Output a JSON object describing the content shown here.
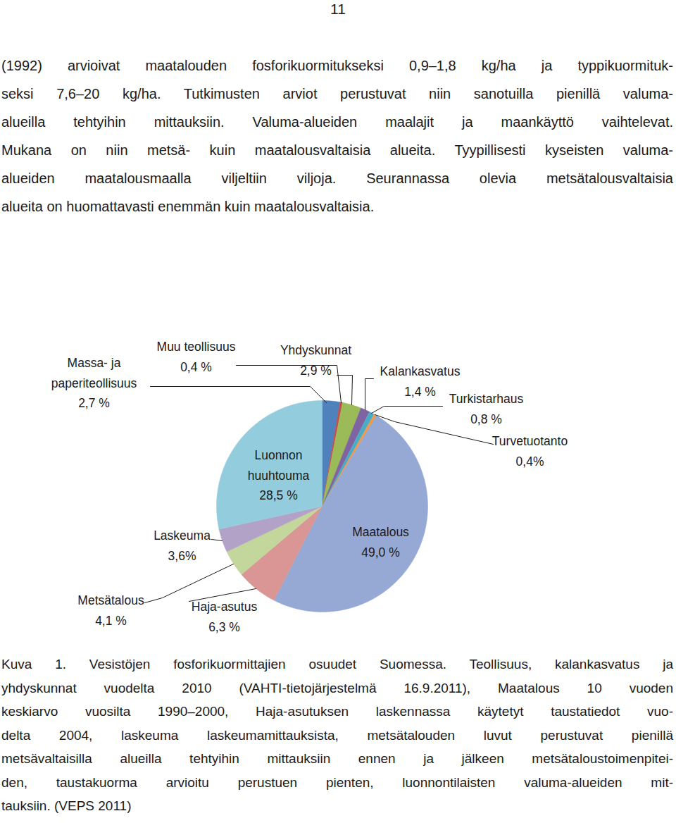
{
  "page_number": "11",
  "paragraph": [
    "(1992) arvioivat maatalouden fosforikuormitukseksi 0,9–1,8 kg/ha ja typpikuormituk-",
    "seksi 7,6–20 kg/ha. Tutkimusten arviot perustuvat niin sanotuilla pienillä valuma-",
    "alueilla tehtyihin mittauksiin. Valuma-alueiden maalajit ja maankäyttö vaihtelevat.",
    "Mukana on niin metsä- kuin maatalousvaltaisia alueita. Tyypillisesti kyseisten valuma-",
    "alueiden maatalousmaalla viljeltiin viljoja. Seurannassa olevia metsätalousvaltaisia",
    "alueita on huomattavasti enemmän kuin maatalousvaltaisia."
  ],
  "chart_data": {
    "type": "pie",
    "categories": [
      "Massa- ja paperiteollisuus",
      "Muu teollisuus",
      "Yhdyskunnat",
      "Kalankasvatus",
      "Turkistarhaus",
      "Turvetuotanto",
      "Maatalous",
      "Haja-asutus",
      "Metsätalous",
      "Laskeuma",
      "Luonnon huuhtouma"
    ],
    "values": [
      2.7,
      0.4,
      2.9,
      1.4,
      0.8,
      0.4,
      49.0,
      6.3,
      4.1,
      3.6,
      28.5
    ],
    "value_labels": [
      "2,7 %",
      "0,4 %",
      "2,9 %",
      "1,4 %",
      "0,8 %",
      "0,4%",
      "49,0 %",
      "6,3 %",
      "4,1 %",
      "3,6%",
      "28,5 %"
    ],
    "colors": [
      "#4f81bd",
      "#c0504d",
      "#9bbb59",
      "#8064a2",
      "#4bacc6",
      "#f79646",
      "#95a9d4",
      "#d99694",
      "#c3d69b",
      "#b3a2c7",
      "#93cddd"
    ],
    "data_labels": true
  },
  "caption": [
    "Kuva 1. Vesistöjen fosforikuormittajien osuudet Suomessa. Teollisuus, kalankasvatus ja",
    "yhdyskunnat vuodelta 2010 (VAHTI-tietojärjestelmä 16.9.2011), Maatalous 10 vuoden",
    "keskiarvo vuosilta 1990–2000, Haja-asutuksen laskennassa käytetyt taustatiedot vuo-",
    "delta 2004, laskeuma laskeumamittauksista, metsätalouden luvut perustuvat pienillä",
    "metsävaltaisilla alueilla tehtyihin mittauksiin ennen ja jälkeen metsätaloustoimenpitei-",
    "den, taustakuorma arvioitu perustuen pienten, luonnontilaisten valuma-alueiden mit-",
    "tauksiin. (VEPS 2011)"
  ]
}
